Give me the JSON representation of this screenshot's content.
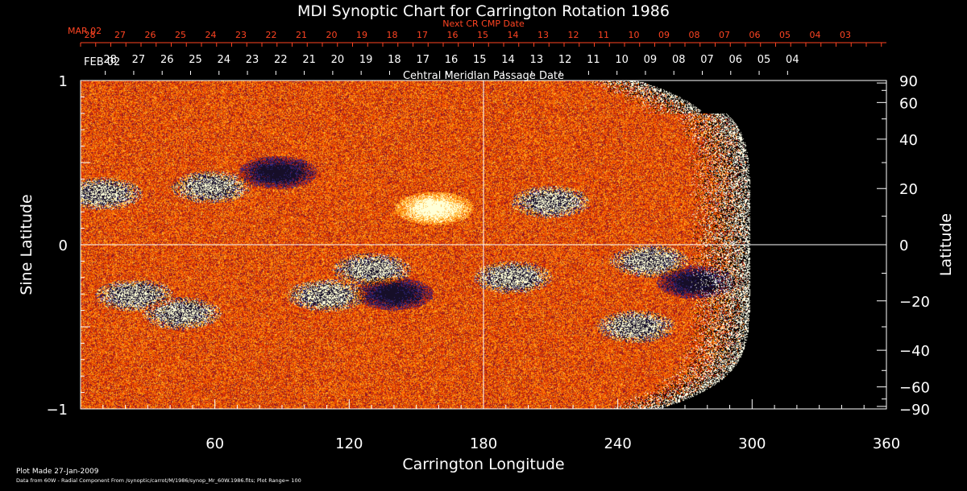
{
  "chart_data": {
    "type": "heatmap",
    "title": "MDI Synoptic Chart for Carrington Rotation 1986",
    "xlabel": "Carrington Longitude",
    "ylabel": "Sine Latitude",
    "y2label": "Latitude",
    "xlim": [
      0,
      360
    ],
    "ylim": [
      -1,
      1
    ],
    "x_ticks": [
      "60",
      "120",
      "180",
      "240",
      "300",
      "360"
    ],
    "x_tick_values": [
      60,
      120,
      180,
      240,
      300,
      360
    ],
    "y_ticks": [
      "1",
      "0",
      "−1"
    ],
    "y_tick_values": [
      1,
      0,
      -1
    ],
    "lat_ticks": [
      "90",
      "60",
      "40",
      "20",
      "0",
      "−20",
      "−40",
      "−60",
      "−90"
    ],
    "lat_tick_values": [
      90,
      60,
      40,
      20,
      0,
      -20,
      -40,
      -60,
      -90
    ],
    "data_coverage_end_longitude": 297,
    "cmp_axis_label": "Central Meridian Passage Date",
    "cmp_start_label": "FEB 02",
    "cmp_dates": [
      "28",
      "27",
      "26",
      "25",
      "24",
      "23",
      "22",
      "21",
      "20",
      "19",
      "18",
      "17",
      "16",
      "15",
      "14",
      "13",
      "12",
      "11",
      "10",
      "09",
      "08",
      "07",
      "06",
      "05",
      "04"
    ],
    "cmp_positions": [
      13.2,
      25.9,
      38.6,
      51.3,
      64,
      76.7,
      89.4,
      102.1,
      114.8,
      127.5,
      140.2,
      152.9,
      165.6,
      178.3,
      191,
      203.7,
      216.4,
      229.1,
      241.8,
      254.5,
      267.2,
      279.9,
      292.6,
      305.3,
      318
    ],
    "next_cr_label": "Next CR CMP Date",
    "next_cr_start_label": "MAR 02",
    "next_cr_dates": [
      "28",
      "27",
      "26",
      "25",
      "24",
      "23",
      "22",
      "21",
      "20",
      "19",
      "18",
      "17",
      "16",
      "15",
      "14",
      "13",
      "12",
      "11",
      "10",
      "09",
      "08",
      "07",
      "06",
      "05",
      "04",
      "03"
    ],
    "next_cr_positions": [
      1.8,
      15.3,
      28.8,
      42.3,
      55.8,
      69.3,
      82.8,
      96.3,
      109.8,
      123.3,
      136.8,
      150.3,
      163.8,
      177.3,
      190.8,
      204.3,
      217.8,
      231.3,
      244.8,
      258.3,
      271.8,
      285.3,
      298.8,
      312.3,
      325.8,
      339.3
    ],
    "strong_regions": [
      {
        "lon": 10,
        "sinlat": 0.31,
        "polarity": "mixed"
      },
      {
        "lon": 58,
        "sinlat": 0.35,
        "polarity": "mixed"
      },
      {
        "lon": 88,
        "sinlat": 0.44,
        "polarity": "negative"
      },
      {
        "lon": 158,
        "sinlat": 0.22,
        "polarity": "positive"
      },
      {
        "lon": 210,
        "sinlat": 0.26,
        "polarity": "mixed"
      },
      {
        "lon": 24,
        "sinlat": -0.31,
        "polarity": "mixed"
      },
      {
        "lon": 45,
        "sinlat": -0.42,
        "polarity": "mixed"
      },
      {
        "lon": 110,
        "sinlat": -0.31,
        "polarity": "mixed"
      },
      {
        "lon": 130,
        "sinlat": -0.15,
        "polarity": "mixed"
      },
      {
        "lon": 140,
        "sinlat": -0.3,
        "polarity": "negative"
      },
      {
        "lon": 193,
        "sinlat": -0.2,
        "polarity": "mixed"
      },
      {
        "lon": 254,
        "sinlat": -0.1,
        "polarity": "mixed"
      },
      {
        "lon": 275,
        "sinlat": -0.23,
        "polarity": "negative"
      },
      {
        "lon": 248,
        "sinlat": -0.5,
        "polarity": "mixed"
      }
    ],
    "colors": {
      "background": "#000000",
      "field_low": "#c82800",
      "field_mid": "#ff6a00",
      "field_high": "#ffd060",
      "positive": "#ffffd8",
      "negative": "#1a1030",
      "deep_negative": "#2a2878",
      "date_red": "#ff4422",
      "axes": "#ffffff"
    }
  },
  "footer": {
    "plot_made": "Plot Made 27-Jan-2009",
    "source_note": "Data from 60W - Radial Component From /synoptic/carrot/M/1986/synop_Mr_60W.1986.fits; Plot Range= 100"
  }
}
